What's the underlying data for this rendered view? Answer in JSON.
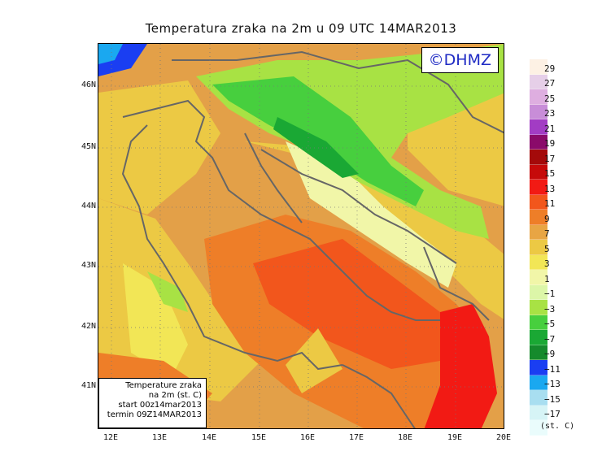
{
  "title": "Temperatura zraka na 2m u 09 UTC 14MAR2013",
  "logo": "©DHMZ",
  "infobox": {
    "line1": "Temperature zraka",
    "line2": "na 2m (st. C)",
    "line3": "start 00z14mar2013",
    "line4": "termin 09Z14MAR2013"
  },
  "lat_labels": [
    "46N",
    "45N",
    "44N",
    "43N",
    "42N",
    "41N"
  ],
  "lon_labels": [
    "12E",
    "13E",
    "14E",
    "15E",
    "16E",
    "17E",
    "18E",
    "19E",
    "20E"
  ],
  "legend": {
    "labels": [
      "29",
      "27",
      "25",
      "23",
      "21",
      "19",
      "17",
      "15",
      "13",
      "11",
      "9",
      "7",
      "5",
      "3",
      "1",
      "−1",
      "−3",
      "−5",
      "−7",
      "−9",
      "−11",
      "−13",
      "−15",
      "−17"
    ],
    "units": "(st. C)",
    "colors": [
      "#fdf1e4",
      "#e6cfe8",
      "#deaee0",
      "#c88dd8",
      "#a23cc4",
      "#8a0a6a",
      "#a40a0a",
      "#c60a0a",
      "#f21a14",
      "#f2561c",
      "#ee7e28",
      "#e8a544",
      "#ecc944",
      "#f2e656",
      "#f1f6a8",
      "#dcf6a8",
      "#a8e244",
      "#47cf3e",
      "#1aa834",
      "#158a2c",
      "#1a3ef2",
      "#1aa8f0",
      "#a8def0",
      "#d6f4f6",
      "#eafcfc"
    ]
  }
}
